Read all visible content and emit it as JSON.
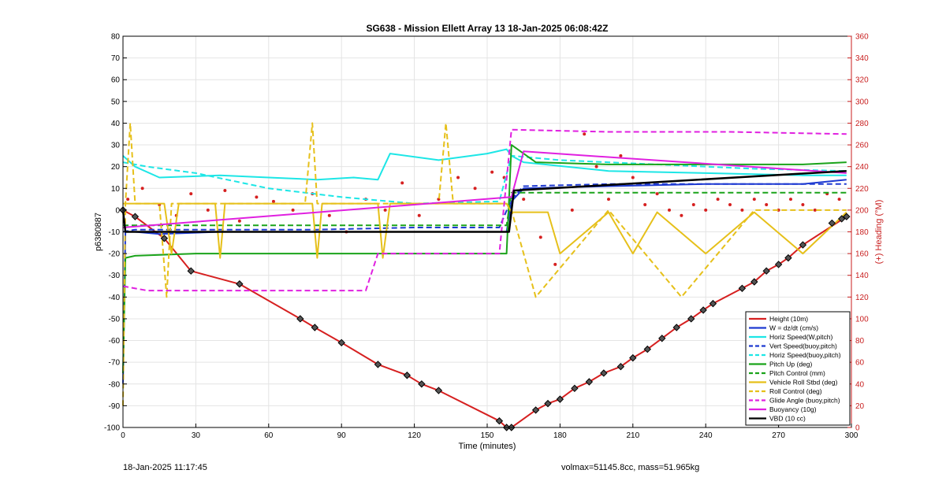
{
  "chart_data": {
    "type": "line",
    "title": "SG638 - Mission Ellett Array 13 18-Jan-2025 06:08:42Z",
    "xlabel": "Time (minutes)",
    "ylabel": "p6380887",
    "y2label": "(+) Heading (°M)",
    "xlim": [
      0,
      300
    ],
    "ylim": [
      -100,
      80
    ],
    "y2lim": [
      0,
      360
    ],
    "xticks": [
      0,
      30,
      60,
      90,
      120,
      150,
      180,
      210,
      240,
      270,
      300
    ],
    "yticks": [
      -100,
      -90,
      -80,
      -70,
      -60,
      -50,
      -40,
      -30,
      -20,
      -10,
      0,
      10,
      20,
      30,
      40,
      50,
      60,
      70,
      80
    ],
    "y2ticks": [
      0,
      20,
      40,
      60,
      80,
      100,
      120,
      140,
      160,
      180,
      200,
      220,
      240,
      260,
      280,
      300,
      320,
      340,
      360
    ],
    "grid": true,
    "legend_position": "lower-right",
    "series": [
      {
        "name": "Height (10m)",
        "color": "#d62020",
        "style": "solid",
        "x": [
          0,
          5,
          17,
          28,
          48,
          73,
          79,
          90,
          105,
          117,
          123,
          130,
          155,
          158,
          160,
          170,
          175,
          180,
          186,
          192,
          198,
          205,
          210,
          216,
          222,
          228,
          234,
          239,
          243,
          255,
          260,
          265,
          270,
          274,
          280,
          298
        ],
        "y": [
          0,
          -3,
          -13,
          -28,
          -34,
          -50,
          -54,
          -61,
          -71,
          -76,
          -80,
          -83,
          -97,
          -100,
          -100,
          -92,
          -89,
          -87,
          -82,
          -79,
          -75,
          -72,
          -68,
          -64,
          -59,
          -54,
          -50,
          -46,
          -43,
          -36,
          -33,
          -28,
          -25,
          -22,
          -16,
          -3
        ]
      },
      {
        "name": "W = dz/dt (cm/s)",
        "color": "#1f3bd1",
        "style": "solid",
        "x": [
          0,
          1,
          5,
          15,
          40,
          80,
          120,
          155,
          158,
          160,
          165,
          200,
          240,
          280,
          298
        ],
        "y": [
          -80,
          -10,
          -10,
          -11,
          -10,
          -10,
          -10,
          -10,
          -10,
          4,
          10,
          11,
          12,
          12,
          14
        ]
      },
      {
        "name": "Horiz Speed(W,pitch)",
        "color": "#1de6e6",
        "style": "solid",
        "x": [
          0,
          5,
          15,
          40,
          60,
          80,
          95,
          105,
          110,
          130,
          150,
          158,
          160,
          165,
          200,
          240,
          280,
          298
        ],
        "y": [
          25,
          20,
          15,
          16,
          15,
          14,
          15,
          14,
          26,
          23,
          26,
          28,
          25,
          22,
          18,
          17,
          16,
          16
        ]
      },
      {
        "name": "Vert Speed(buoy,pitch)",
        "color": "#1f3bd1",
        "style": "dashed",
        "x": [
          0,
          5,
          40,
          80,
          120,
          155,
          160,
          165,
          200,
          240,
          280,
          298
        ],
        "y": [
          -10,
          -9,
          -9,
          -9,
          -8,
          -8,
          5,
          11,
          12,
          12,
          12,
          12
        ]
      },
      {
        "name": "Horiz Speed(buoy,pitch)",
        "color": "#1de6e6",
        "style": "dashed",
        "x": [
          0,
          10,
          30,
          60,
          90,
          120,
          155,
          160,
          180,
          220,
          260,
          298
        ],
        "y": [
          22,
          20,
          17,
          10,
          6,
          3,
          4,
          25,
          23,
          21,
          19,
          18
        ]
      },
      {
        "name": "Pitch Up (deg)",
        "color": "#1aa31a",
        "style": "solid",
        "x": [
          0,
          1,
          5,
          30,
          60,
          90,
          130,
          155,
          158,
          160,
          170,
          200,
          240,
          280,
          298
        ],
        "y": [
          -75,
          -22,
          -21,
          -20,
          -20,
          -20,
          -20,
          -20,
          -20,
          30,
          22,
          21,
          21,
          21,
          22
        ]
      },
      {
        "name": "Pitch Control (mm)",
        "color": "#1aa31a",
        "style": "dashed",
        "x": [
          0,
          158,
          160,
          298
        ],
        "y": [
          -7,
          -7,
          8,
          8
        ]
      },
      {
        "name": "Vehicle Roll Stbd (deg)",
        "color": "#e6c01a",
        "style": "solid",
        "x": [
          0,
          5,
          17,
          20,
          23,
          26,
          38,
          40,
          42,
          60,
          78,
          80,
          82,
          95,
          105,
          107,
          110,
          125,
          150,
          158,
          160,
          165,
          175,
          180,
          200,
          210,
          220,
          240,
          260,
          280,
          298
        ],
        "y": [
          3,
          3,
          3,
          -20,
          3,
          3,
          3,
          -22,
          3,
          3,
          3,
          -22,
          3,
          3,
          3,
          -22,
          3,
          3,
          3,
          3,
          -1,
          -1,
          -1,
          -20,
          -1,
          -20,
          -1,
          -20,
          -1,
          -20,
          -1
        ]
      },
      {
        "name": "Roll Control (deg)",
        "color": "#e6c01a",
        "style": "dashed",
        "x": [
          0,
          1,
          3,
          5,
          15,
          18,
          20,
          60,
          75,
          78,
          80,
          120,
          130,
          133,
          136,
          158,
          160,
          170,
          200,
          230,
          260,
          298
        ],
        "y": [
          -90,
          3,
          40,
          3,
          3,
          -40,
          3,
          3,
          3,
          40,
          3,
          3,
          3,
          40,
          3,
          3,
          0,
          -40,
          0,
          -40,
          0,
          0
        ]
      },
      {
        "name": "Glide Angle (buoy,pitch)",
        "color": "#e020e0",
        "style": "dashed",
        "x": [
          0,
          10,
          50,
          100,
          105,
          125,
          155,
          160,
          200,
          250,
          298
        ],
        "y": [
          -35,
          -37,
          -37,
          -37,
          -20,
          -20,
          -20,
          37,
          36,
          36,
          35
        ]
      },
      {
        "name": "Buoyancy (10g)",
        "color": "#e020e0",
        "style": "solid",
        "x": [
          0,
          160,
          165,
          298
        ],
        "y": [
          -8,
          6,
          27,
          17
        ]
      },
      {
        "name": "VBD (10 cc)",
        "color": "#000000",
        "style": "solid",
        "x": [
          0,
          1,
          50,
          100,
          155,
          159,
          161,
          298
        ],
        "y": [
          0,
          -10,
          -10,
          -10,
          -10,
          -10,
          9,
          18
        ]
      }
    ],
    "heading_series": {
      "name": "Heading",
      "color": "#d62020",
      "style": "dotted",
      "axis": "right",
      "x": [
        2,
        8,
        15,
        22,
        28,
        35,
        42,
        48,
        55,
        62,
        70,
        78,
        85,
        92,
        100,
        108,
        115,
        122,
        130,
        138,
        145,
        152,
        157,
        165,
        172,
        178,
        185,
        190,
        195,
        200,
        205,
        210,
        215,
        220,
        225,
        230,
        235,
        240,
        245,
        250,
        255,
        260,
        265,
        270,
        275,
        280,
        285,
        290,
        295
      ],
      "y": [
        210,
        220,
        205,
        195,
        215,
        200,
        218,
        190,
        212,
        208,
        200,
        215,
        195,
        180,
        210,
        200,
        225,
        195,
        210,
        230,
        220,
        235,
        230,
        210,
        175,
        150,
        200,
        270,
        240,
        210,
        250,
        230,
        205,
        215,
        200,
        195,
        205,
        200,
        210,
        205,
        200,
        210,
        205,
        200,
        210,
        205,
        200,
        215,
        210
      ]
    },
    "markers": {
      "name": "Height markers",
      "x": [
        0,
        5,
        17,
        28,
        48,
        73,
        79,
        90,
        105,
        117,
        123,
        130,
        155,
        158,
        160,
        170,
        175,
        180,
        186,
        192,
        198,
        205,
        210,
        216,
        222,
        228,
        234,
        239,
        243,
        255,
        260,
        265,
        270,
        274,
        280,
        292,
        296,
        298
      ],
      "y": [
        0,
        -3,
        -13,
        -28,
        -34,
        -50,
        -54,
        -61,
        -71,
        -76,
        -80,
        -83,
        -97,
        -100,
        -100,
        -92,
        -89,
        -87,
        -82,
        -79,
        -75,
        -72,
        -68,
        -64,
        -59,
        -54,
        -50,
        -46,
        -43,
        -36,
        -33,
        -28,
        -25,
        -22,
        -16,
        -6,
        -4,
        -3
      ]
    }
  },
  "footer": {
    "timestamp": "18-Jan-2025 11:17:45",
    "volmax": "volmax=51145.8cc, mass=51.965kg"
  },
  "colors": {
    "right_axis": "#c81e1e",
    "grid": "#e4e4e4"
  }
}
